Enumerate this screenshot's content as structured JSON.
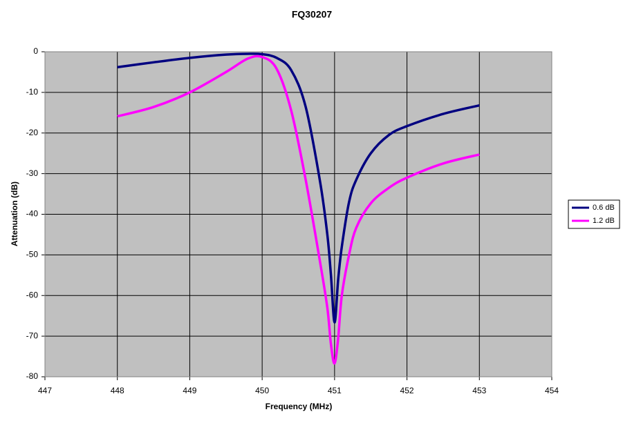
{
  "chart_data": {
    "type": "line",
    "title": "FQ30207",
    "x_label": "Frequency (MHz)",
    "y_label": "Attenuation (dB)",
    "x": [
      448,
      448.5,
      449,
      449.5,
      449.8,
      450,
      450.2,
      450.4,
      450.6,
      450.8,
      450.9,
      450.95,
      451,
      451.05,
      451.1,
      451.2,
      451.3,
      451.5,
      451.75,
      452,
      452.5,
      453
    ],
    "series": [
      {
        "name": "0.6 dB",
        "color": "#000080",
        "values": [
          -3.8,
          -2.6,
          -1.5,
          -0.7,
          -0.5,
          -0.6,
          -1.5,
          -4.5,
          -13.5,
          -32,
          -45,
          -55,
          -66.6,
          -56,
          -48,
          -37,
          -31.5,
          -25,
          -20.5,
          -18.3,
          -15.3,
          -13.2
        ]
      },
      {
        "name": "1.2 dB",
        "color": "#ff00ff",
        "values": [
          -15.9,
          -13.6,
          -10,
          -5,
          -1.7,
          -1.3,
          -4.2,
          -14.4,
          -31.4,
          -51.8,
          -63,
          -72,
          -76.7,
          -70.5,
          -60,
          -50,
          -43.3,
          -37.3,
          -33.5,
          -31,
          -27.5,
          -25.3
        ]
      }
    ],
    "xlim": [
      447,
      454
    ],
    "xticks": [
      447,
      448,
      449,
      450,
      451,
      452,
      453,
      454
    ],
    "ylim": [
      -80,
      0
    ],
    "yticks": [
      0,
      -10,
      -20,
      -30,
      -40,
      -50,
      -60,
      -70,
      -80
    ],
    "grid": true,
    "legend": "right",
    "plot_background": "#c0c0c0"
  }
}
